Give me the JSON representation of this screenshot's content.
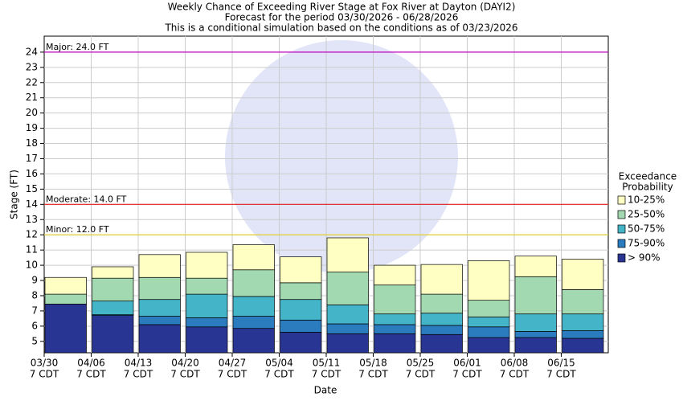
{
  "chart_data": {
    "type": "bar",
    "title": "Weekly Chance of Exceeding River Stage at Fox River at Dayton (DAYI2)",
    "subtitle": "Forecast for the period 03/30/2026 - 06/28/2026",
    "subtitle2": "This is a conditional simulation based on the conditions as of 03/23/2026",
    "y_label": "Stage (FT)",
    "x_label": "Date",
    "categories": [
      "03/30",
      "04/06",
      "04/13",
      "04/20",
      "04/27",
      "05/04",
      "05/11",
      "05/18",
      "05/25",
      "06/01",
      "06/08",
      "06/15"
    ],
    "category_sublabel": "7 CDT",
    "legend_title": [
      "Exceedance",
      "Probability"
    ],
    "series": [
      {
        "name": "> 90%",
        "color": "#283593",
        "values": [
          7.45,
          6.7,
          6.1,
          5.95,
          5.85,
          5.6,
          5.5,
          5.5,
          5.45,
          5.25,
          5.25,
          5.2
        ]
      },
      {
        "name": "75-90%",
        "color": "#2b7bbf",
        "values": [
          7.45,
          6.75,
          6.65,
          6.55,
          6.65,
          6.4,
          6.15,
          6.1,
          6.05,
          5.95,
          5.65,
          5.7
        ]
      },
      {
        "name": "50-75%",
        "color": "#44b4c9",
        "values": [
          7.45,
          7.65,
          7.75,
          8.1,
          7.95,
          7.75,
          7.4,
          6.8,
          6.85,
          6.6,
          6.8,
          6.8
        ]
      },
      {
        "name": "25-50%",
        "color": "#a3d9b1",
        "values": [
          8.1,
          9.15,
          9.2,
          9.15,
          9.7,
          8.85,
          9.55,
          8.7,
          8.1,
          7.7,
          9.25,
          8.4
        ]
      },
      {
        "name": "10-25%",
        "color": "#ffffc4",
        "values": [
          9.2,
          9.9,
          10.7,
          10.85,
          11.35,
          10.55,
          11.8,
          10.0,
          10.05,
          10.3,
          10.6,
          10.4
        ]
      }
    ],
    "thresholds": [
      {
        "label": "Major: 24.0 FT",
        "value": 24,
        "color": "#c000c0"
      },
      {
        "label": "Moderate: 14.0 FT",
        "value": 14,
        "color": "#e02020"
      },
      {
        "label": "Minor: 12.0 FT",
        "value": 12,
        "color": "#e0d020"
      }
    ],
    "ylim": [
      4.25,
      25.05
    ],
    "yticks": [
      5,
      6,
      7,
      8,
      9,
      10,
      11,
      12,
      13,
      14,
      15,
      16,
      17,
      18,
      19,
      20,
      21,
      22,
      23,
      24
    ],
    "grid": true
  }
}
